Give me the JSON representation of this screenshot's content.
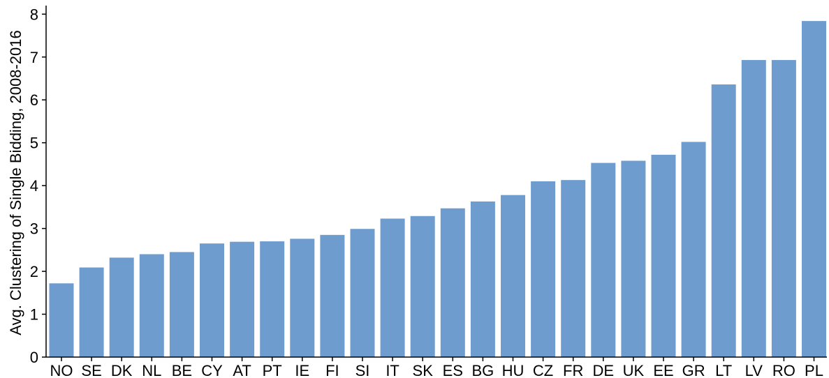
{
  "chart_data": {
    "type": "bar",
    "title": "",
    "xlabel": "",
    "ylabel": "Avg. Clustering of Single Bidding, 2008-2016",
    "categories": [
      "NO",
      "SE",
      "DK",
      "NL",
      "BE",
      "CY",
      "AT",
      "PT",
      "IE",
      "FI",
      "SI",
      "IT",
      "SK",
      "ES",
      "BG",
      "HU",
      "CZ",
      "FR",
      "DE",
      "UK",
      "EE",
      "GR",
      "LT",
      "LV",
      "RO",
      "PL"
    ],
    "values": [
      1.72,
      2.09,
      2.32,
      2.4,
      2.45,
      2.65,
      2.69,
      2.7,
      2.76,
      2.85,
      2.99,
      3.23,
      3.29,
      3.47,
      3.63,
      3.78,
      4.1,
      4.13,
      4.53,
      4.58,
      4.72,
      5.02,
      6.36,
      6.93,
      6.93,
      7.84
    ],
    "yticks": [
      0,
      1,
      2,
      3,
      4,
      5,
      6,
      7,
      8
    ],
    "ylim": [
      0,
      8.2
    ],
    "grid": false,
    "bar_color": "#6f9ccf",
    "axis_color": "#000000"
  }
}
